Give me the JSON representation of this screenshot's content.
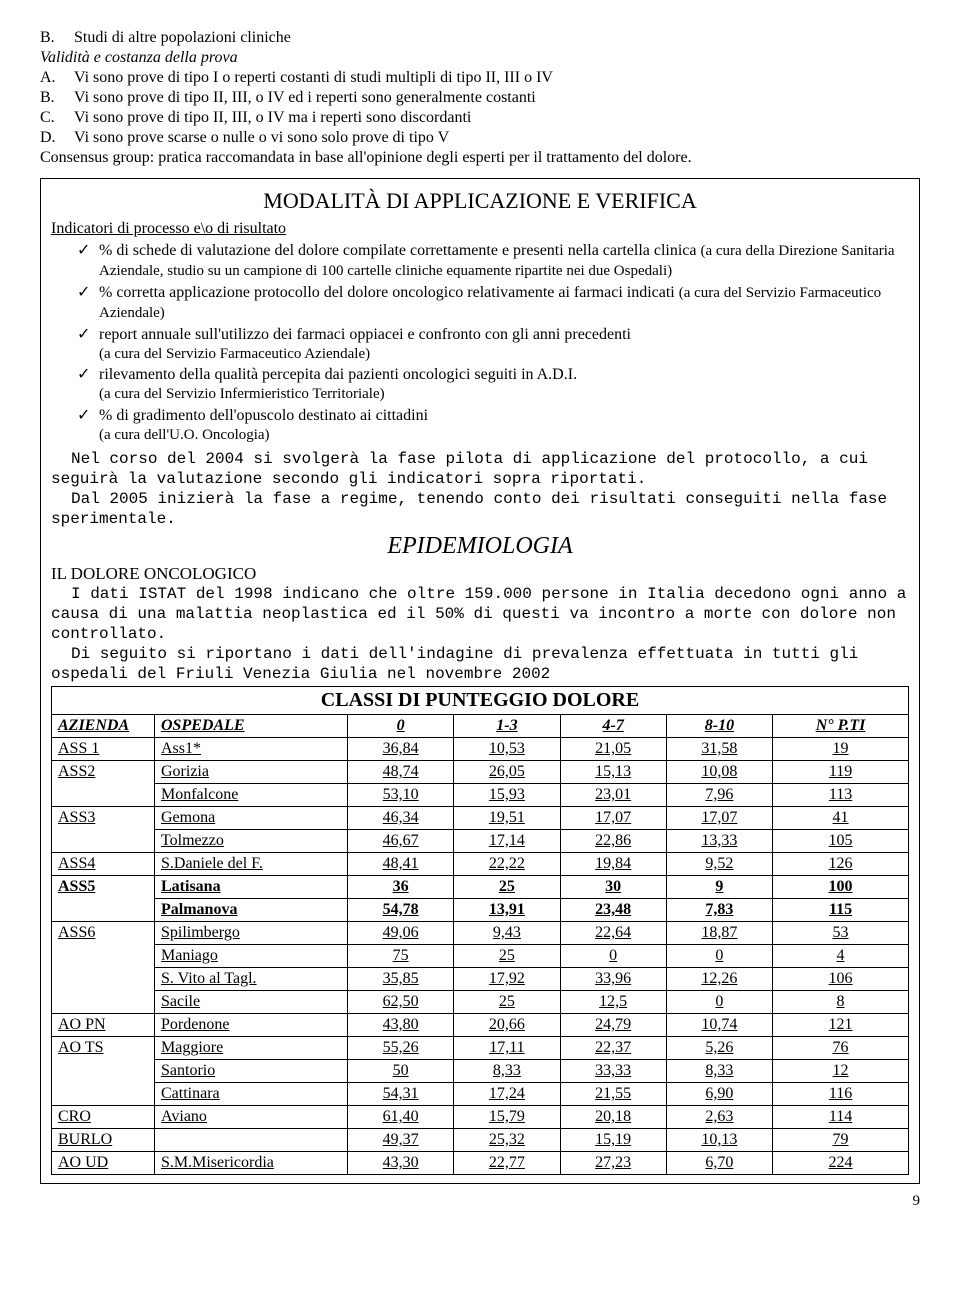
{
  "top_list": {
    "B": "Studi di altre popolazioni cliniche",
    "validity_line": "Validità e costanza della prova",
    "A2": "Vi sono prove di tipo I o reperti costanti di studi multipli di tipo II, III o IV",
    "B2": "Vi sono prove di tipo II, III, o IV ed i reperti sono generalmente costanti",
    "C2": "Vi sono prove di tipo II, III, o IV ma i reperti sono discordanti",
    "D2": "Vi sono prove scarse o nulle o vi sono solo prove di tipo V",
    "consensus": "Consensus group: pratica raccomandata in base all'opinione degli esperti per il trattamento del dolore."
  },
  "box": {
    "title": "MODALITÀ DI APPLICAZIONE E VERIFICA",
    "indicators_heading": "Indicatori di processo e\\o di risultato",
    "items": [
      {
        "main": "% di schede di valutazione del dolore compilate correttamente e presenti nella cartella clinica ",
        "tail_small": "(a cura della Direzione Sanitaria Aziendale, studio su un campione di 100 cartelle cliniche equamente ripartite nei due Ospedali)"
      },
      {
        "main": "% corretta applicazione protocollo del dolore oncologico relativamente ai farmaci indicati ",
        "tail_small": "(a cura del Servizio Farmaceutico Aziendale)"
      },
      {
        "main": "report annuale sull'utilizzo dei farmaci oppiacei e confronto con gli anni precedenti",
        "sub": "(a cura del Servizio Farmaceutico Aziendale)"
      },
      {
        "main": "rilevamento della qualità percepita dai pazienti oncologici seguiti in A.D.I.",
        "sub": "(a cura del Servizio Infermieristico Territoriale)"
      },
      {
        "main": "% di gradimento dell'opuscolo destinato ai cittadini",
        "sub": "(a cura dell'U.O. Oncologia)"
      }
    ],
    "mono1": "Nel corso del 2004 si svolgerà la fase pilota di applicazione del protocollo, a cui seguirà la valutazione secondo gli indicatori sopra riportati.",
    "mono2": "Dal 2005 inizierà la fase a regime, tenendo conto dei risultati conseguiti nella fase sperimentale.",
    "epi_title": "EPIDEMIOLOGIA",
    "epi_sub": "IL DOLORE ONCOLOGICO",
    "mono3": "I dati ISTAT del 1998 indicano che oltre 159.000 persone in Italia decedono ogni anno a causa di una malattia neoplastica ed il 50% di questi va incontro a morte con dolore non controllato.",
    "mono4": "Di seguito si riportano i dati dell'indagine di prevalenza effettuata in tutti gli ospedali del Friuli Venezia Giulia nel novembre 2002",
    "table": {
      "title": "CLASSI DI PUNTEGGIO DOLORE",
      "columns": [
        "AZIENDA",
        "OSPEDALE",
        "0",
        "1-3",
        "4-7",
        "8-10",
        "N° P.TI"
      ],
      "groups": [
        {
          "azienda": "ASS 1",
          "bold": false,
          "rows": [
            {
              "osp": "Ass1*",
              "v": [
                "36,84",
                "10,53",
                "21,05",
                "31,58",
                "19"
              ]
            }
          ]
        },
        {
          "azienda": "ASS2",
          "bold": false,
          "rows": [
            {
              "osp": "Gorizia",
              "v": [
                "48,74",
                "26,05",
                "15,13",
                "10,08",
                "119"
              ]
            },
            {
              "osp": "Monfalcone",
              "v": [
                "53,10",
                "15,93",
                "23,01",
                "7,96",
                "113"
              ]
            }
          ]
        },
        {
          "azienda": "ASS3",
          "bold": false,
          "rows": [
            {
              "osp": "Gemona",
              "v": [
                "46,34",
                "19,51",
                "17,07",
                "17,07",
                "41"
              ]
            },
            {
              "osp": "Tolmezzo",
              "v": [
                "46,67",
                "17,14",
                "22,86",
                "13,33",
                "105"
              ]
            }
          ]
        },
        {
          "azienda": "ASS4",
          "bold": false,
          "rows": [
            {
              "osp": "S.Daniele del F.",
              "v": [
                "48,41",
                "22,22",
                "19,84",
                "9,52",
                "126"
              ]
            }
          ]
        },
        {
          "azienda": "ASS5",
          "bold": true,
          "rows": [
            {
              "osp": "Latisana",
              "bold": true,
              "v": [
                "36",
                "25",
                "30",
                "9",
                "100"
              ]
            },
            {
              "osp": "Palmanova",
              "bold": true,
              "v": [
                "54,78",
                "13,91",
                "23,48",
                "7,83",
                "115"
              ]
            }
          ]
        },
        {
          "azienda": "ASS6",
          "bold": false,
          "rows": [
            {
              "osp": "Spilimbergo",
              "v": [
                "49,06",
                "9,43",
                "22,64",
                "18,87",
                "53"
              ]
            },
            {
              "osp": "Maniago",
              "v": [
                "75",
                "25",
                "0",
                "0",
                "4"
              ]
            },
            {
              "osp": "S. Vito al Tagl.",
              "v": [
                "35,85",
                "17,92",
                "33,96",
                "12,26",
                "106"
              ]
            },
            {
              "osp": "Sacile",
              "v": [
                "62,50",
                "25",
                "12,5",
                "0",
                "8"
              ]
            }
          ]
        },
        {
          "azienda": "AO PN",
          "bold": false,
          "rows": [
            {
              "osp": "Pordenone",
              "v": [
                "43,80",
                "20,66",
                "24,79",
                "10,74",
                "121"
              ]
            }
          ]
        },
        {
          "azienda": "AO TS",
          "bold": false,
          "rows": [
            {
              "osp": "Maggiore",
              "v": [
                "55,26",
                "17,11",
                "22,37",
                "5,26",
                "76"
              ]
            },
            {
              "osp": "Santorio",
              "v": [
                "50",
                "8,33",
                "33,33",
                "8,33",
                "12"
              ]
            },
            {
              "osp": "Cattinara",
              "v": [
                "54,31",
                "17,24",
                "21,55",
                "6,90",
                "116"
              ]
            }
          ]
        },
        {
          "azienda": "CRO",
          "bold": false,
          "rows": [
            {
              "osp": "Aviano",
              "v": [
                "61,40",
                "15,79",
                "20,18",
                "2,63",
                "114"
              ]
            }
          ]
        },
        {
          "azienda": "BURLO",
          "bold": false,
          "rows": [
            {
              "osp": "",
              "v": [
                "49,37",
                "25,32",
                "15,19",
                "10,13",
                "79"
              ]
            }
          ]
        },
        {
          "azienda": "AO UD",
          "bold": false,
          "rows": [
            {
              "osp": "S.M.Misericordia",
              "v": [
                "43,30",
                "22,77",
                "27,23",
                "6,70",
                "224"
              ]
            }
          ]
        }
      ]
    }
  },
  "page_number": "9"
}
